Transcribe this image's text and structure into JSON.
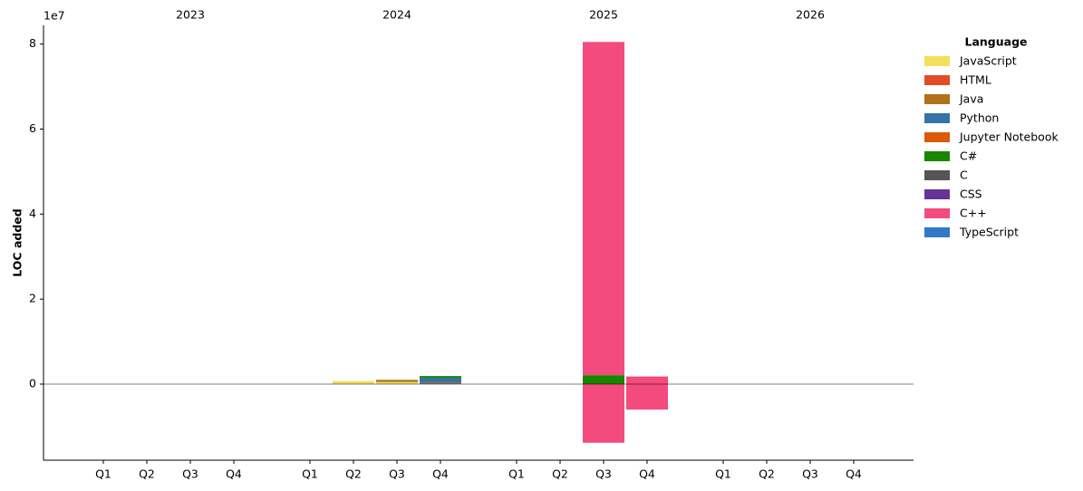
{
  "chart_data": {
    "type": "stacked_bar",
    "y_label": "LOC added",
    "y_offset_label": "1e7",
    "categories": [
      "Q1",
      "Q2",
      "Q3",
      "Q4",
      "Q1",
      "Q2",
      "Q3",
      "Q4",
      "Q1",
      "Q2",
      "Q3",
      "Q4",
      "Q1",
      "Q2",
      "Q3",
      "Q4"
    ],
    "groups": [
      "2023",
      "2024",
      "2025",
      "2026"
    ],
    "legend_title": "Language",
    "legend_position": "outside-right",
    "ylim": [
      -1.79,
      8.44
    ],
    "yticks": [
      0,
      2,
      4,
      6,
      8
    ],
    "grid": false,
    "series": [
      {
        "name": "JavaScript",
        "color": "#f1e05a",
        "values": [
          0,
          0,
          0,
          0,
          0,
          0.07,
          0.05,
          0,
          0,
          0,
          0,
          0,
          0,
          0,
          0,
          0
        ],
        "negative_values": [
          0,
          0,
          0,
          0,
          0,
          0,
          0,
          0,
          0,
          0,
          0,
          0,
          0,
          0,
          0,
          0
        ]
      },
      {
        "name": "HTML",
        "color": "#e34c26",
        "values": [
          0,
          0,
          0,
          0,
          0,
          0,
          0,
          0,
          0,
          0,
          0,
          0,
          0,
          0,
          0,
          0
        ],
        "negative_values": [
          0,
          0,
          0,
          0,
          0,
          0,
          0,
          0,
          0,
          0,
          0,
          0,
          0,
          0,
          0,
          0
        ]
      },
      {
        "name": "Java",
        "color": "#b07219",
        "values": [
          0,
          0,
          0,
          0,
          0,
          0,
          0.05,
          0.03,
          0,
          0,
          0,
          0,
          0,
          0,
          0,
          0
        ],
        "negative_values": [
          0,
          0,
          0,
          0,
          0,
          0,
          0,
          0,
          0,
          0,
          0,
          0,
          0,
          0,
          0,
          0
        ]
      },
      {
        "name": "Python",
        "color": "#3572a5",
        "values": [
          0,
          0,
          0,
          0,
          0,
          0,
          0,
          0.12,
          0,
          0,
          0,
          0,
          0,
          0,
          0,
          0
        ],
        "negative_values": [
          0,
          0,
          0,
          0,
          0,
          0,
          0,
          0,
          0,
          0,
          0,
          0,
          0,
          0,
          0,
          0
        ]
      },
      {
        "name": "Jupyter Notebook",
        "color": "#da5b0b",
        "values": [
          0,
          0,
          0,
          0,
          0,
          0,
          0,
          0,
          0,
          0,
          0,
          0,
          0,
          0,
          0,
          0
        ],
        "negative_values": [
          0,
          0,
          0,
          0,
          0,
          0,
          0,
          0,
          0,
          0,
          0,
          0,
          0,
          0,
          0,
          0
        ]
      },
      {
        "name": "C#",
        "color": "#178600",
        "values": [
          0,
          0,
          0,
          0,
          0,
          0,
          0,
          0.04,
          0,
          0,
          0.21,
          0,
          0,
          0,
          0,
          0
        ],
        "negative_values": [
          0,
          0,
          0,
          0,
          0,
          0,
          0,
          0,
          0,
          0,
          0,
          0,
          0,
          0,
          0,
          0
        ]
      },
      {
        "name": "C",
        "color": "#555555",
        "values": [
          0,
          0,
          0,
          0,
          0,
          0,
          0,
          0,
          0,
          0,
          0,
          0,
          0,
          0,
          0,
          0
        ],
        "negative_values": [
          0,
          0,
          0,
          0,
          0,
          0,
          0,
          0,
          0,
          0,
          0,
          0,
          0,
          0,
          0,
          0
        ]
      },
      {
        "name": "CSS",
        "color": "#663399",
        "values": [
          0,
          0,
          0,
          0,
          0,
          0,
          0,
          0,
          0,
          0,
          0,
          0,
          0,
          0,
          0,
          0
        ],
        "negative_values": [
          0,
          0,
          0,
          0,
          0,
          0,
          0,
          0,
          0,
          0,
          0,
          0,
          0,
          0,
          0,
          0
        ]
      },
      {
        "name": "C++",
        "color": "#f34b7d",
        "values": [
          0,
          0,
          0,
          0,
          0,
          0,
          0,
          0,
          0,
          0,
          7.84,
          0.18,
          0,
          0,
          0,
          0
        ],
        "negative_values": [
          0,
          0,
          0,
          0,
          0,
          0,
          0,
          0,
          0,
          0,
          -1.38,
          -0.6,
          0,
          0,
          0,
          0
        ]
      },
      {
        "name": "TypeScript",
        "color": "#3178c6",
        "values": [
          0,
          0,
          0,
          0,
          0,
          0,
          0,
          0,
          0,
          0,
          0,
          0,
          0,
          0,
          0,
          0
        ],
        "negative_values": [
          0,
          0,
          0,
          0,
          0,
          0,
          0,
          0,
          0,
          0,
          0,
          0,
          0,
          0,
          0,
          0
        ]
      }
    ]
  }
}
